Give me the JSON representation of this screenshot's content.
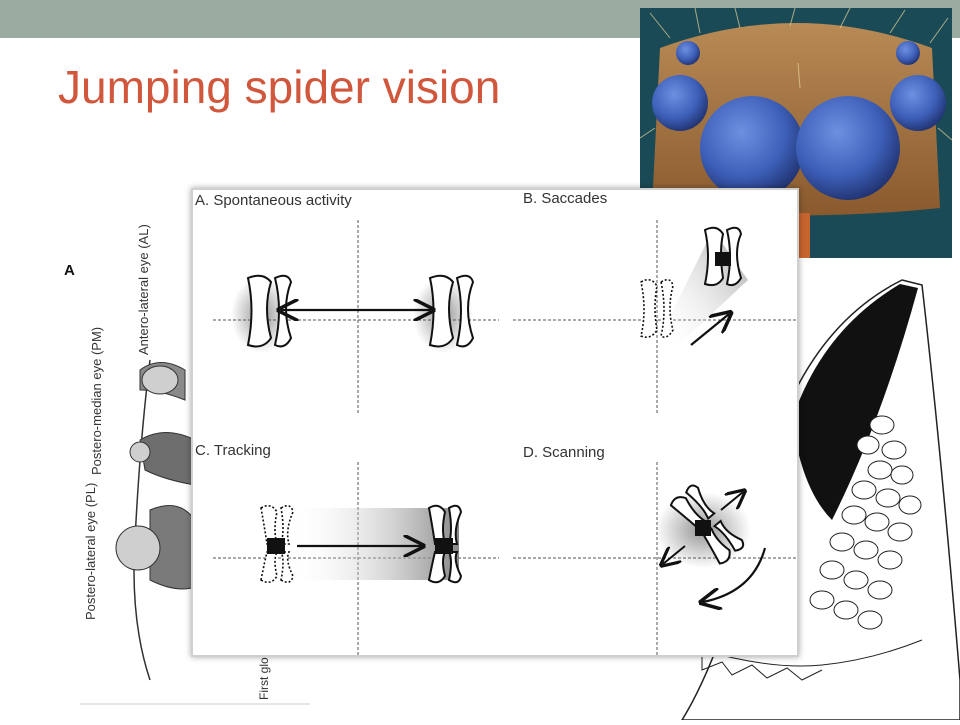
{
  "slide": {
    "title": "Jumping spider vision"
  },
  "left_figure": {
    "letter": "A",
    "labels": {
      "al": "Antero-lateral eye (AL)",
      "pm": "Postero-median eye (PM)",
      "pl": "Postero-lateral eye (PL)",
      "bottom": "First glom of Al"
    },
    "colors": {
      "eye_fill": "#8a8a8a",
      "outline": "#333333"
    }
  },
  "panel": {
    "labels": {
      "a": "A.  Spontaneous activity",
      "b": "B.   Saccades",
      "c": "C.   Tracking",
      "d": "D.   Scanning"
    }
  },
  "colors": {
    "topbar": "#9aaba1",
    "title": "#d0573c",
    "eye_blue": "#3d5fb8",
    "head_brown": "#a4703e"
  }
}
